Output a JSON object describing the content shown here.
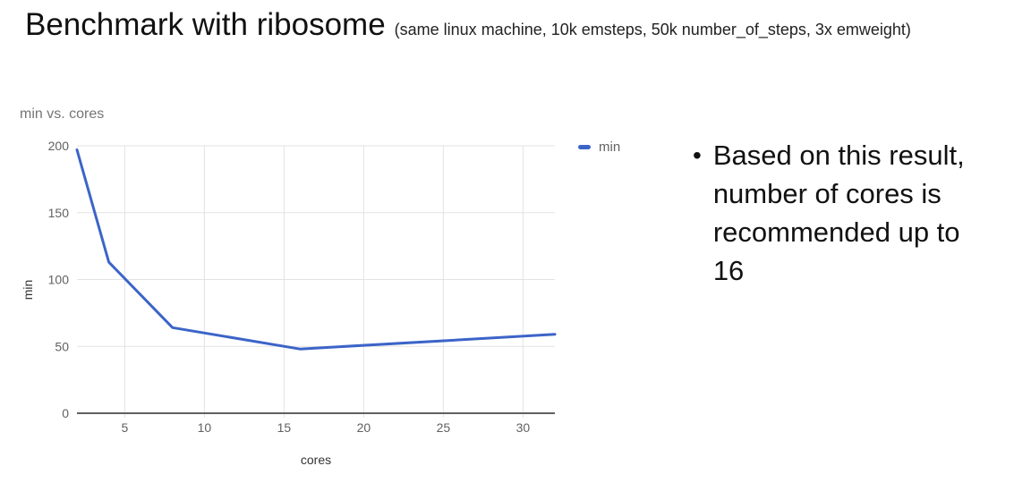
{
  "header": {
    "title": "Benchmark with ribosome",
    "subtitle": "(same linux machine, 10k emsteps, 50k number_of_steps, 3x emweight)"
  },
  "chart_data": {
    "type": "line",
    "title": "min vs. cores",
    "xlabel": "cores",
    "ylabel": "min",
    "x": [
      2,
      4,
      8,
      16,
      32
    ],
    "series": [
      {
        "name": "min",
        "values": [
          197,
          113,
          64,
          48,
          59
        ]
      }
    ],
    "xlim": [
      2,
      32
    ],
    "ylim": [
      0,
      200
    ],
    "xticks": [
      5,
      10,
      15,
      20,
      25,
      30
    ],
    "yticks": [
      0,
      50,
      100,
      150,
      200
    ],
    "grid": true,
    "legend": {
      "position": "top-right",
      "entries": [
        "min"
      ]
    },
    "colors": {
      "line": "#3c64c8",
      "grid": "#e3e3e3",
      "axis": "#616161",
      "tick_text": "#616161",
      "title_text": "#757575",
      "axis_title_text": "#333333"
    }
  },
  "note": {
    "bullet": "•",
    "text": "Based on this result, number of cores is recommended up to 16"
  }
}
